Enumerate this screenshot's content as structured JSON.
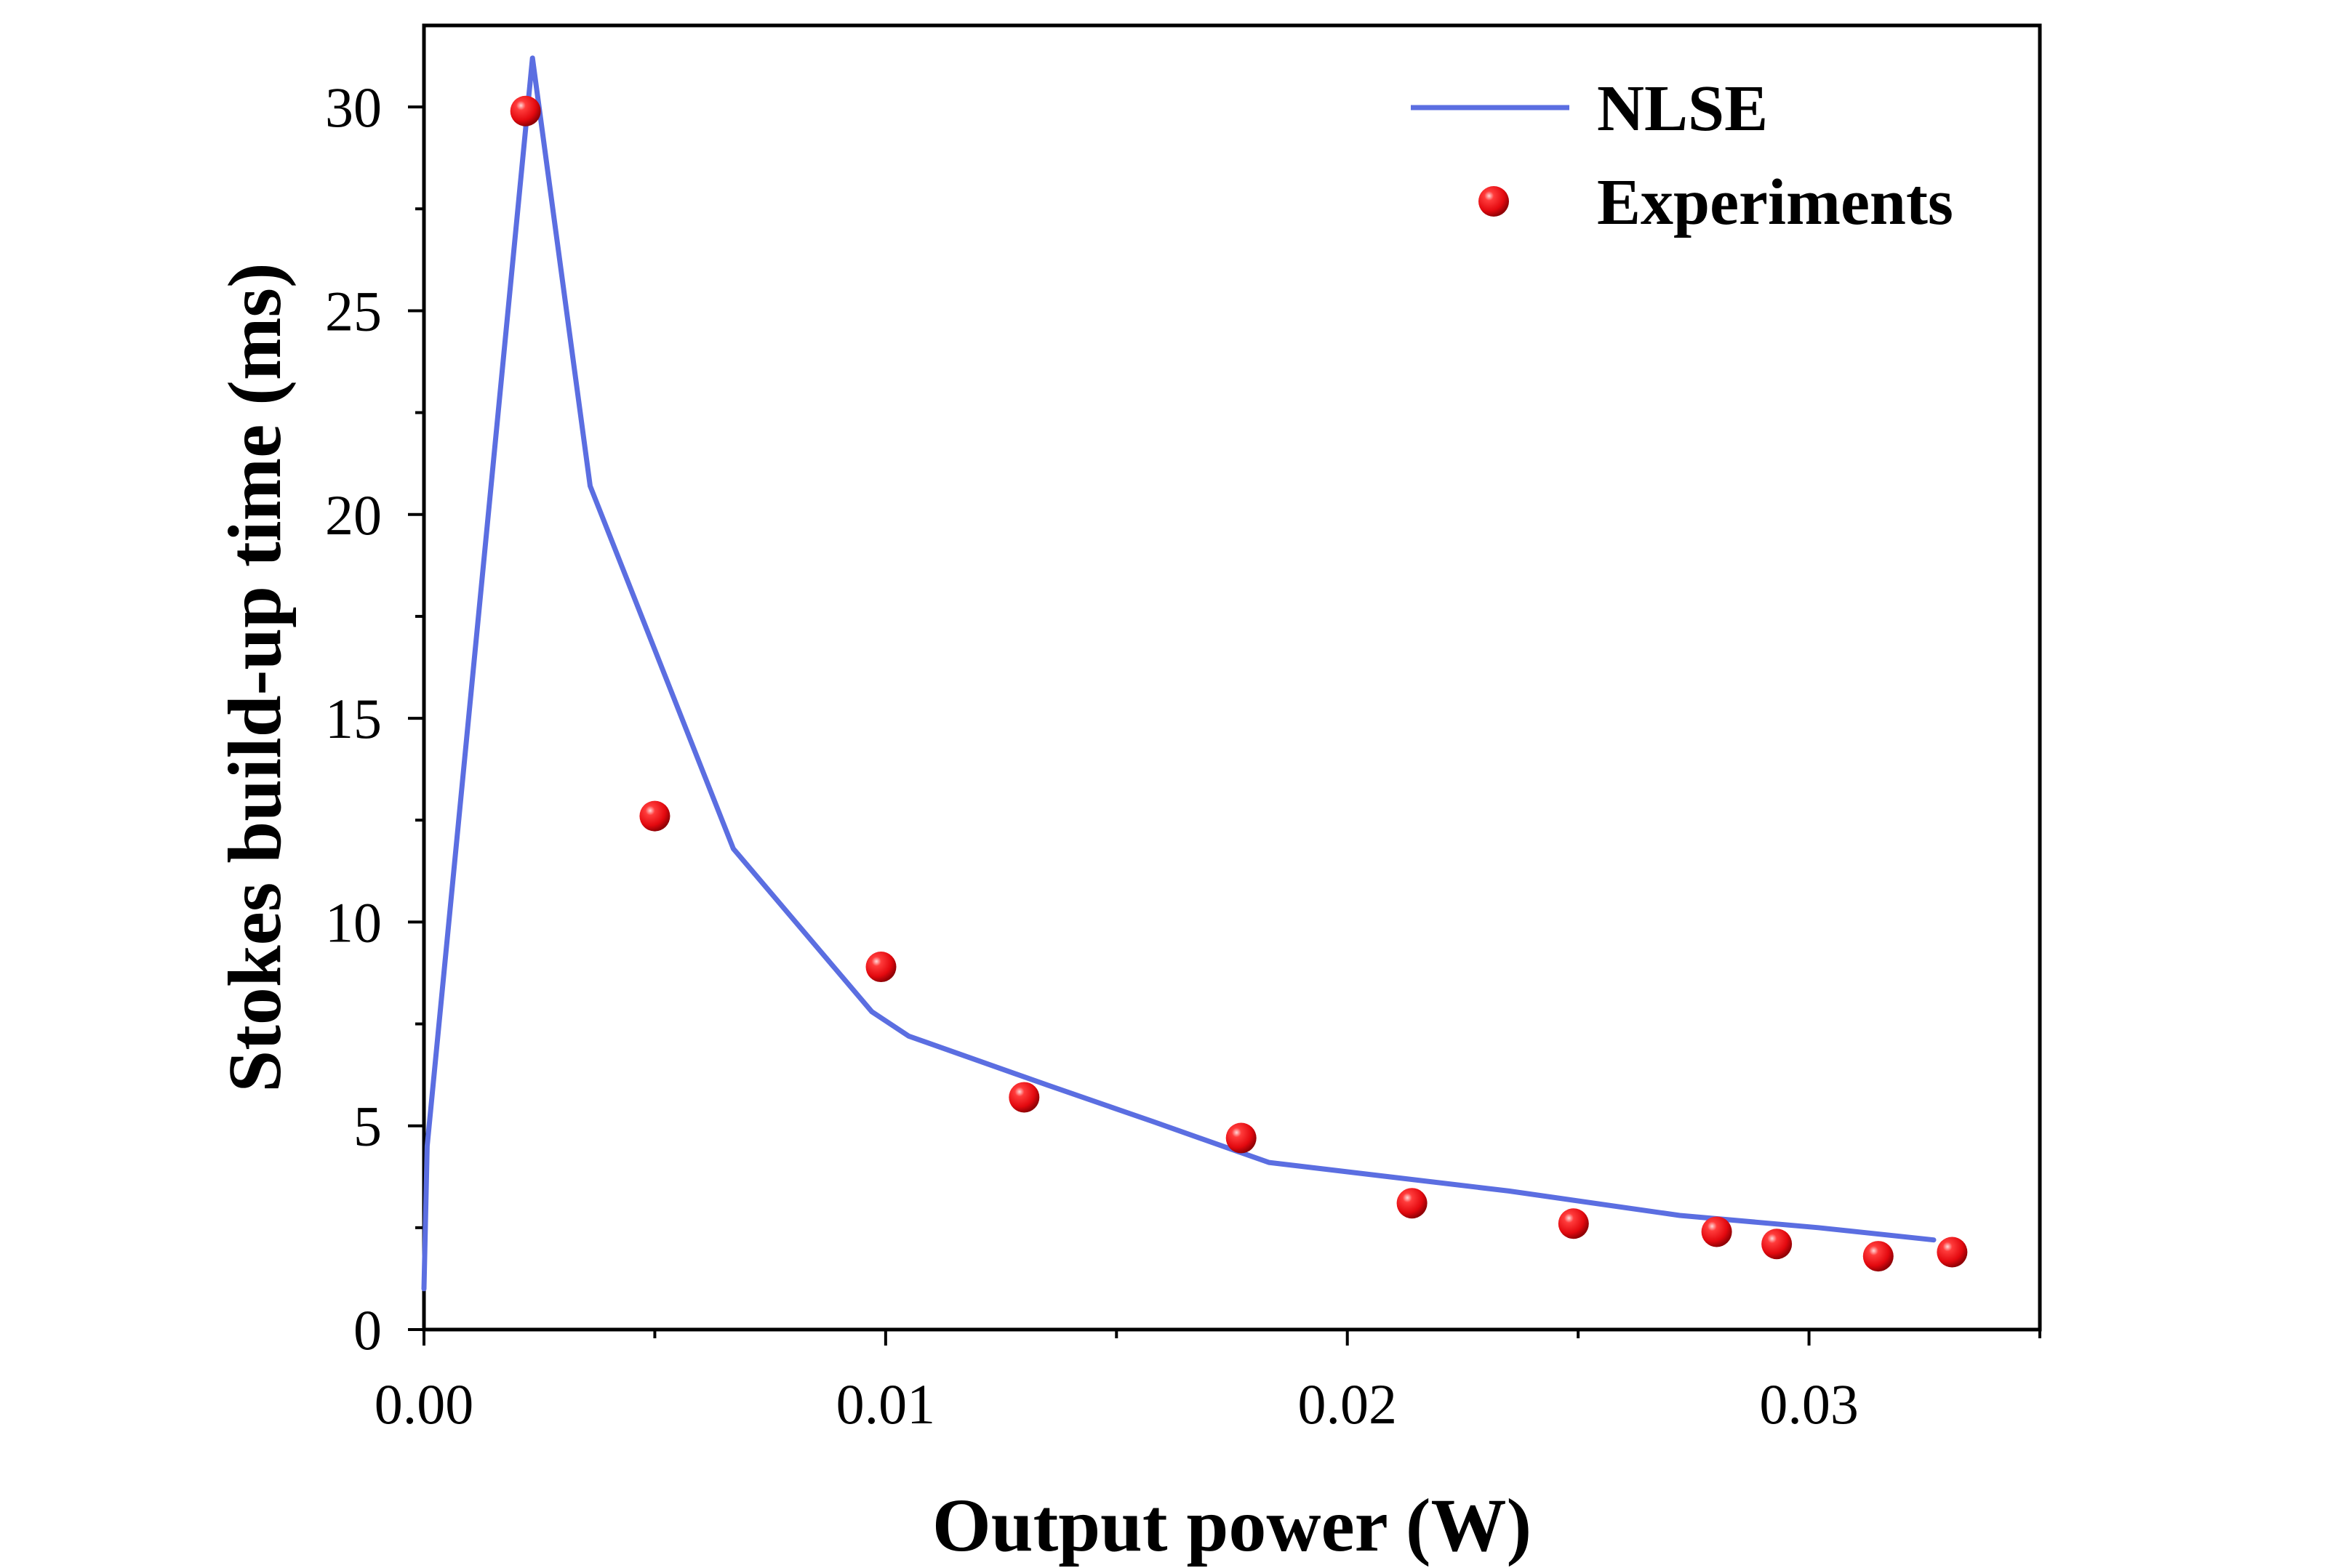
{
  "chart_data": {
    "type": "line+scatter",
    "xlabel": "Output power (W)",
    "ylabel": "Stokes build-up time (ms)",
    "xlim": [
      0,
      0.035
    ],
    "ylim": [
      0,
      32
    ],
    "x_ticks": [
      0.0,
      0.01,
      0.02,
      0.03
    ],
    "x_tick_labels": [
      "0.00",
      "0.01",
      "0.02",
      "0.03"
    ],
    "y_ticks": [
      0,
      5,
      10,
      15,
      20,
      25,
      30
    ],
    "y_tick_labels": [
      "0",
      "5",
      "10",
      "15",
      "20",
      "25",
      "30"
    ],
    "legend_position": "top-right",
    "series": [
      {
        "name": "NLSE",
        "kind": "line",
        "color": "#5b6ee1",
        "x": [
          0.0,
          7e-05,
          0.00235,
          0.0036,
          0.0067,
          0.0097,
          0.0105,
          0.0135,
          0.0158,
          0.0183,
          0.0235,
          0.0272,
          0.0302,
          0.0327
        ],
        "y": [
          1.0,
          4.5,
          31.2,
          20.7,
          11.8,
          7.8,
          7.2,
          6.0,
          5.1,
          4.1,
          3.4,
          2.8,
          2.5,
          2.2
        ]
      },
      {
        "name": "Experiments",
        "kind": "scatter",
        "color": "#e8141a",
        "x": [
          0.0022,
          0.005,
          0.0099,
          0.013,
          0.0177,
          0.0214,
          0.0249,
          0.028,
          0.0293,
          0.0315,
          0.0331
        ],
        "y": [
          29.9,
          12.6,
          8.9,
          5.7,
          4.7,
          3.1,
          2.6,
          2.4,
          2.1,
          1.8,
          1.9
        ]
      }
    ]
  }
}
